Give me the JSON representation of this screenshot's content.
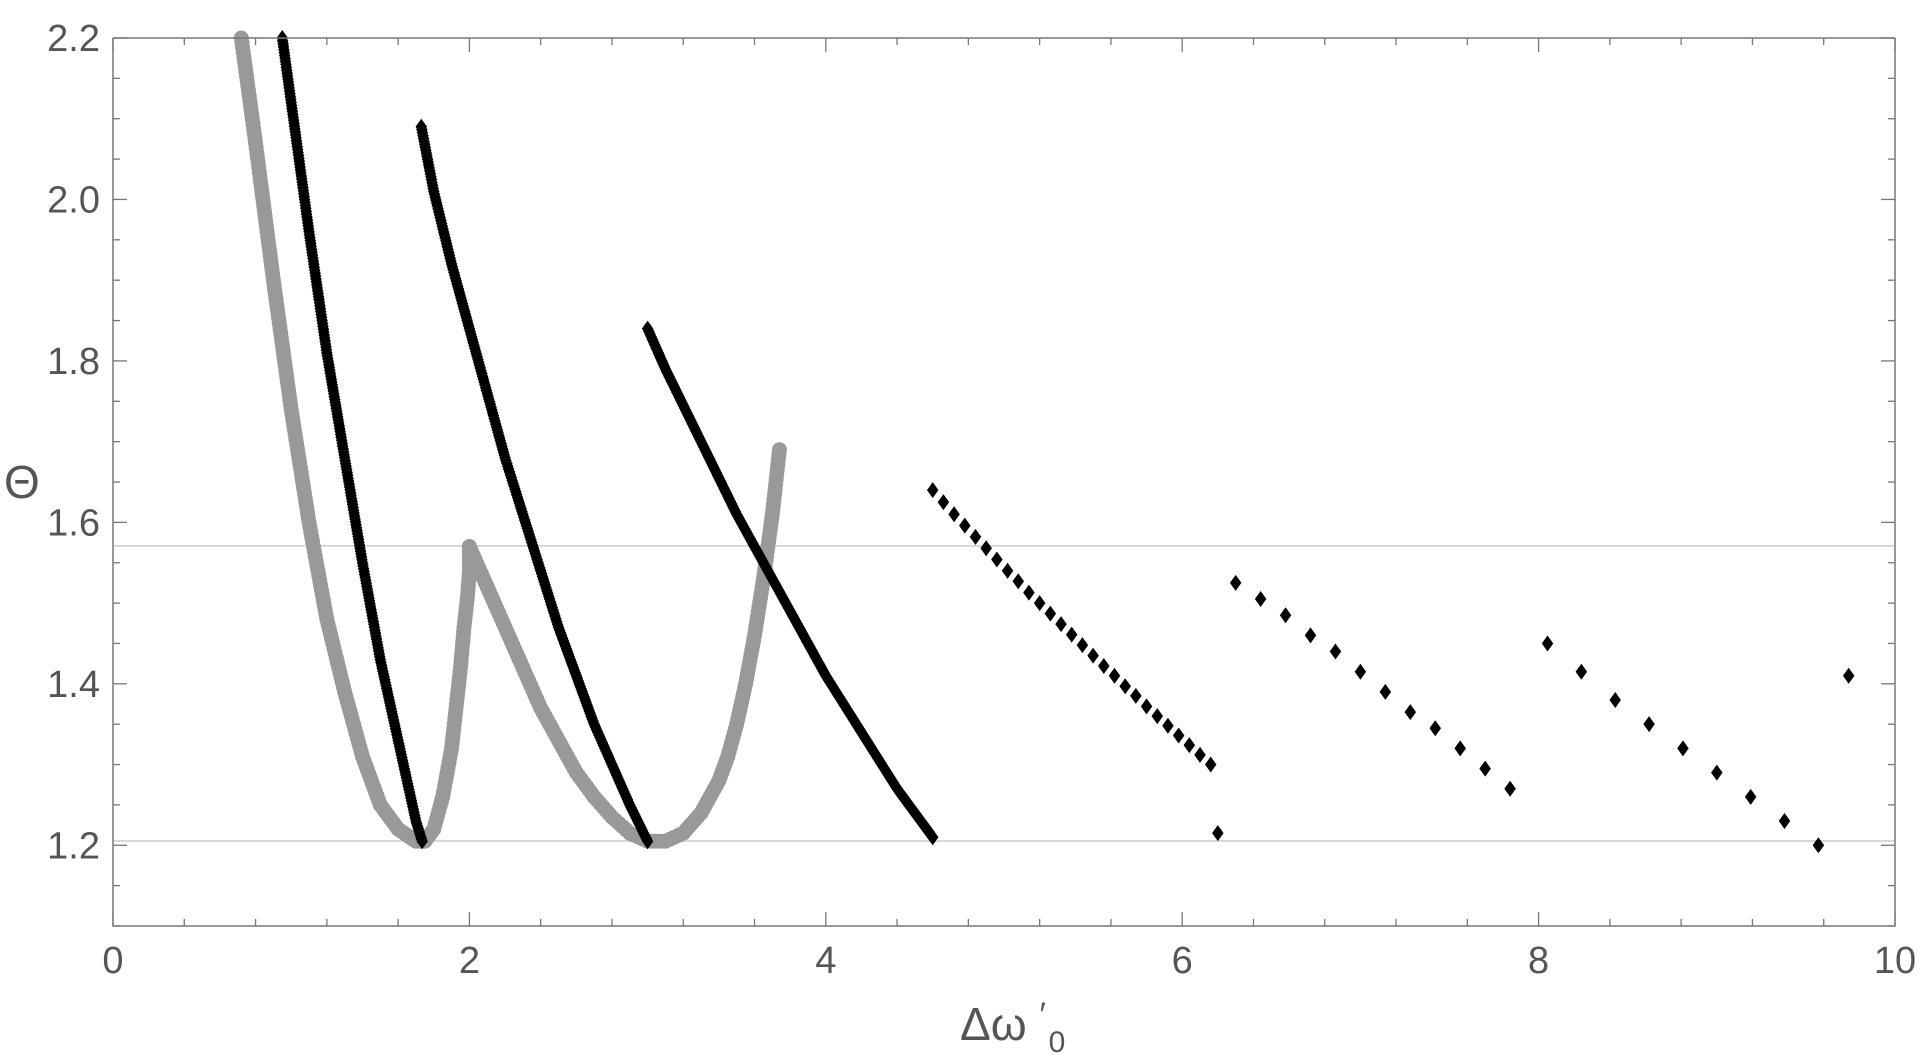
{
  "chart_data": {
    "type": "scatter",
    "title": "",
    "xlabel": "Δω",
    "xlabel_prime": "′",
    "xlabel_sub": "0",
    "ylabel": "Θ",
    "xlim": [
      0,
      10
    ],
    "ylim": [
      1.1,
      2.2
    ],
    "x_ticks": [
      0,
      2,
      4,
      6,
      8,
      10
    ],
    "y_ticks": [
      1.2,
      1.4,
      1.6,
      1.8,
      2.0,
      2.2
    ],
    "x_tick_labels": [
      "0",
      "2",
      "4",
      "6",
      "8",
      "10"
    ],
    "y_tick_labels": [
      "1.2",
      "1.4",
      "1.6",
      "1.8",
      "2.0",
      "2.2"
    ],
    "grid": false,
    "reference_lines_y": [
      1.5708,
      1.2053
    ],
    "reference_line_color": "#cccccc",
    "gray_color": "#999999",
    "black_color": "#000000",
    "gray_series": [
      {
        "x": [
          0.72,
          0.8,
          0.9,
          1.0,
          1.1,
          1.2,
          1.3,
          1.4,
          1.5,
          1.6,
          1.7,
          1.75,
          1.8,
          1.85,
          1.9,
          1.93,
          1.95,
          1.97,
          1.99,
          2.0,
          2.0
        ],
        "y": [
          2.2,
          2.07,
          1.9,
          1.74,
          1.6,
          1.48,
          1.39,
          1.31,
          1.25,
          1.22,
          1.205,
          1.205,
          1.22,
          1.26,
          1.32,
          1.38,
          1.42,
          1.47,
          1.51,
          1.54,
          1.57
        ]
      },
      {
        "x": [
          2.0,
          2.1,
          2.2,
          2.3,
          2.4,
          2.5,
          2.6,
          2.7,
          2.8,
          2.9,
          3.0,
          3.1,
          3.2,
          3.3,
          3.4,
          3.45,
          3.5,
          3.55,
          3.6,
          3.65,
          3.7,
          3.74
        ],
        "y": [
          1.57,
          1.52,
          1.47,
          1.42,
          1.37,
          1.33,
          1.29,
          1.26,
          1.235,
          1.215,
          1.205,
          1.205,
          1.215,
          1.24,
          1.28,
          1.31,
          1.35,
          1.4,
          1.46,
          1.53,
          1.61,
          1.69
        ]
      }
    ],
    "black_series": [
      {
        "x": [
          0.95,
          1.0,
          1.1,
          1.2,
          1.3,
          1.4,
          1.5,
          1.6,
          1.7,
          1.735
        ],
        "y": [
          2.2,
          2.12,
          1.96,
          1.81,
          1.68,
          1.55,
          1.43,
          1.33,
          1.23,
          1.205
        ]
      },
      {
        "x": [
          1.73,
          1.8,
          1.9,
          2.0,
          2.1,
          2.2,
          2.3,
          2.4,
          2.5,
          2.6,
          2.7,
          2.8,
          2.9,
          3.0
        ],
        "y": [
          2.09,
          2.01,
          1.92,
          1.84,
          1.76,
          1.68,
          1.61,
          1.54,
          1.47,
          1.41,
          1.35,
          1.3,
          1.25,
          1.205
        ]
      },
      {
        "x": [
          3.0,
          3.1,
          3.2,
          3.3,
          3.4,
          3.5,
          3.6,
          3.7,
          3.8,
          3.9,
          4.0,
          4.1,
          4.2,
          4.3,
          4.4,
          4.5,
          4.6
        ],
        "y": [
          1.84,
          1.79,
          1.745,
          1.7,
          1.655,
          1.61,
          1.57,
          1.53,
          1.49,
          1.45,
          1.41,
          1.375,
          1.34,
          1.305,
          1.27,
          1.24,
          1.21
        ]
      },
      {
        "x": [
          4.6,
          4.66,
          4.72,
          4.78,
          4.84,
          4.9,
          4.96,
          5.02,
          5.08,
          5.14,
          5.2,
          5.26,
          5.32,
          5.38,
          5.44,
          5.5,
          5.56,
          5.62,
          5.68,
          5.74,
          5.8,
          5.86,
          5.92,
          5.98,
          6.04,
          6.1,
          6.16,
          6.2
        ],
        "y": [
          1.64,
          1.625,
          1.61,
          1.596,
          1.582,
          1.568,
          1.554,
          1.54,
          1.527,
          1.513,
          1.5,
          1.487,
          1.474,
          1.461,
          1.448,
          1.435,
          1.422,
          1.41,
          1.397,
          1.385,
          1.372,
          1.36,
          1.348,
          1.336,
          1.324,
          1.312,
          1.3,
          1.215
        ]
      },
      {
        "x": [
          6.3,
          6.44,
          6.58,
          6.72,
          6.86,
          7.0,
          7.14,
          7.28,
          7.42,
          7.56,
          7.7,
          7.84
        ],
        "y": [
          1.525,
          1.505,
          1.485,
          1.46,
          1.44,
          1.415,
          1.39,
          1.365,
          1.345,
          1.32,
          1.295,
          1.27
        ]
      },
      {
        "x": [
          8.05,
          8.24,
          8.43,
          8.62,
          8.81,
          9.0,
          9.19,
          9.38,
          9.57,
          9.74
        ],
        "y": [
          1.45,
          1.415,
          1.38,
          1.35,
          1.32,
          1.29,
          1.26,
          1.23,
          1.2,
          1.41
        ]
      }
    ]
  }
}
